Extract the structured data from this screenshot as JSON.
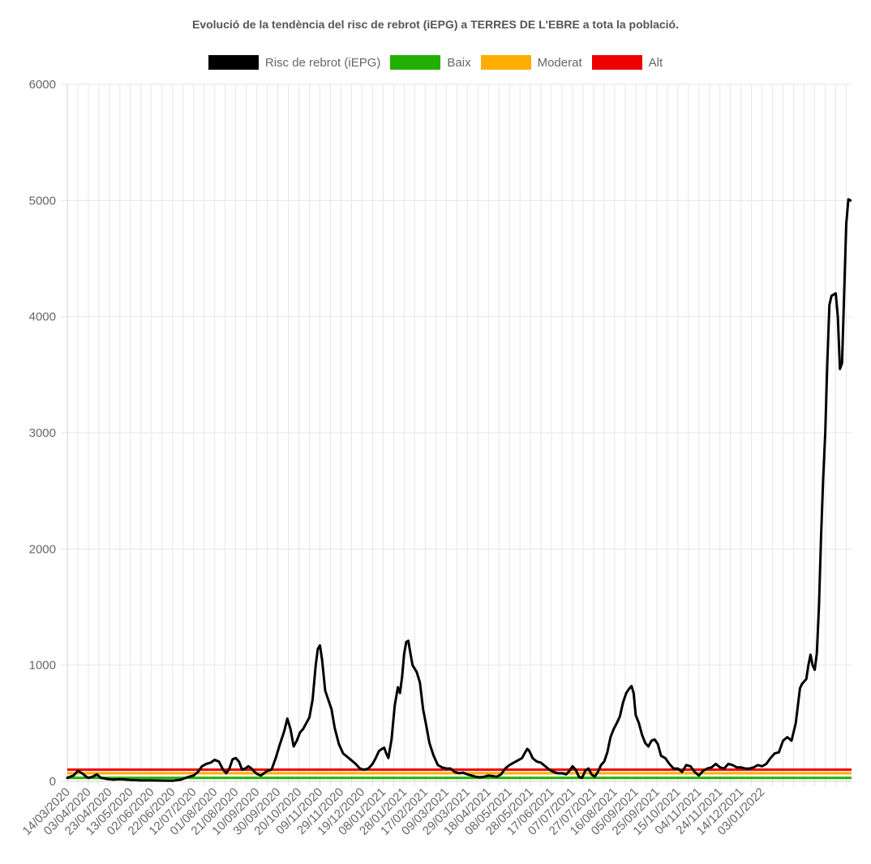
{
  "chart_data": {
    "type": "line",
    "title": "Evolució de la tendència del risc de rebrot (iEPG) a TERRES DE L'EBRE a tota la població.",
    "ylim": [
      0,
      6000
    ],
    "y_ticks": [
      "0",
      "1000",
      "2000",
      "3000",
      "4000",
      "5000",
      "6000"
    ],
    "x_ticks": [
      "14/03/2020",
      "03/04/2020",
      "23/04/2020",
      "13/05/2020",
      "02/06/2020",
      "22/06/2020",
      "12/07/2020",
      "01/08/2020",
      "21/08/2020",
      "10/09/2020",
      "30/09/2020",
      "20/10/2020",
      "09/11/2020",
      "29/11/2020",
      "19/12/2020",
      "08/01/2021",
      "28/01/2021",
      "17/02/2021",
      "09/03/2021",
      "29/03/2021",
      "18/04/2021",
      "08/05/2021",
      "28/05/2021",
      "17/06/2021",
      "07/07/2021",
      "27/07/2021",
      "16/08/2021",
      "05/09/2021",
      "25/09/2021",
      "15/10/2021",
      "04/11/2021",
      "24/11/2021",
      "14/12/2021",
      "03/01/2022"
    ],
    "x_day_start": "14/03/2020",
    "grid": true,
    "legend_position": "top",
    "series": [
      {
        "name": "Risc de rebrot (iEPG)",
        "color": "#000000",
        "points": [
          [
            0,
            30
          ],
          [
            6,
            50
          ],
          [
            10,
            90
          ],
          [
            14,
            70
          ],
          [
            18,
            40
          ],
          [
            20,
            30
          ],
          [
            24,
            40
          ],
          [
            28,
            60
          ],
          [
            32,
            30
          ],
          [
            38,
            20
          ],
          [
            44,
            15
          ],
          [
            50,
            18
          ],
          [
            60,
            12
          ],
          [
            70,
            8
          ],
          [
            80,
            8
          ],
          [
            90,
            6
          ],
          [
            100,
            5
          ],
          [
            108,
            15
          ],
          [
            114,
            35
          ],
          [
            120,
            50
          ],
          [
            124,
            80
          ],
          [
            128,
            130
          ],
          [
            132,
            150
          ],
          [
            136,
            160
          ],
          [
            140,
            185
          ],
          [
            144,
            170
          ],
          [
            148,
            100
          ],
          [
            151,
            70
          ],
          [
            154,
            110
          ],
          [
            157,
            190
          ],
          [
            160,
            200
          ],
          [
            163,
            170
          ],
          [
            166,
            100
          ],
          [
            169,
            110
          ],
          [
            172,
            130
          ],
          [
            175,
            110
          ],
          [
            178,
            80
          ],
          [
            181,
            60
          ],
          [
            184,
            50
          ],
          [
            187,
            70
          ],
          [
            190,
            90
          ],
          [
            194,
            100
          ],
          [
            198,
            200
          ],
          [
            202,
            320
          ],
          [
            206,
            430
          ],
          [
            209,
            540
          ],
          [
            212,
            450
          ],
          [
            215,
            300
          ],
          [
            218,
            350
          ],
          [
            221,
            420
          ],
          [
            224,
            450
          ],
          [
            227,
            500
          ],
          [
            230,
            550
          ],
          [
            233,
            700
          ],
          [
            236,
            1000
          ],
          [
            238,
            1140
          ],
          [
            240,
            1170
          ],
          [
            242,
            1050
          ],
          [
            245,
            780
          ],
          [
            248,
            700
          ],
          [
            251,
            620
          ],
          [
            254,
            460
          ],
          [
            258,
            320
          ],
          [
            262,
            240
          ],
          [
            266,
            210
          ],
          [
            270,
            180
          ],
          [
            274,
            150
          ],
          [
            278,
            110
          ],
          [
            282,
            100
          ],
          [
            286,
            110
          ],
          [
            290,
            150
          ],
          [
            293,
            200
          ],
          [
            296,
            260
          ],
          [
            299,
            280
          ],
          [
            301,
            290
          ],
          [
            303,
            240
          ],
          [
            305,
            200
          ],
          [
            308,
            360
          ],
          [
            311,
            650
          ],
          [
            314,
            810
          ],
          [
            316,
            760
          ],
          [
            318,
            900
          ],
          [
            320,
            1100
          ],
          [
            322,
            1200
          ],
          [
            324,
            1210
          ],
          [
            326,
            1100
          ],
          [
            328,
            1000
          ],
          [
            332,
            940
          ],
          [
            335,
            850
          ],
          [
            338,
            620
          ],
          [
            341,
            480
          ],
          [
            344,
            330
          ],
          [
            348,
            220
          ],
          [
            352,
            140
          ],
          [
            356,
            120
          ],
          [
            360,
            110
          ],
          [
            364,
            110
          ],
          [
            368,
            80
          ],
          [
            372,
            70
          ],
          [
            376,
            75
          ],
          [
            380,
            60
          ],
          [
            384,
            50
          ],
          [
            388,
            40
          ],
          [
            392,
            35
          ],
          [
            396,
            40
          ],
          [
            400,
            50
          ],
          [
            404,
            45
          ],
          [
            408,
            40
          ],
          [
            412,
            60
          ],
          [
            416,
            110
          ],
          [
            420,
            140
          ],
          [
            424,
            160
          ],
          [
            428,
            180
          ],
          [
            432,
            200
          ],
          [
            435,
            250
          ],
          [
            437,
            280
          ],
          [
            439,
            260
          ],
          [
            442,
            200
          ],
          [
            446,
            170
          ],
          [
            450,
            160
          ],
          [
            454,
            130
          ],
          [
            458,
            100
          ],
          [
            462,
            80
          ],
          [
            466,
            70
          ],
          [
            470,
            70
          ],
          [
            474,
            60
          ],
          [
            477,
            90
          ],
          [
            480,
            130
          ],
          [
            483,
            100
          ],
          [
            486,
            40
          ],
          [
            489,
            30
          ],
          [
            492,
            90
          ],
          [
            495,
            110
          ],
          [
            498,
            60
          ],
          [
            501,
            40
          ],
          [
            504,
            80
          ],
          [
            507,
            140
          ],
          [
            510,
            170
          ],
          [
            513,
            250
          ],
          [
            516,
            380
          ],
          [
            519,
            450
          ],
          [
            522,
            500
          ],
          [
            525,
            560
          ],
          [
            528,
            680
          ],
          [
            531,
            760
          ],
          [
            534,
            800
          ],
          [
            536,
            820
          ],
          [
            538,
            760
          ],
          [
            540,
            570
          ],
          [
            543,
            500
          ],
          [
            546,
            400
          ],
          [
            549,
            330
          ],
          [
            552,
            300
          ],
          [
            555,
            350
          ],
          [
            558,
            360
          ],
          [
            561,
            320
          ],
          [
            564,
            220
          ],
          [
            568,
            200
          ],
          [
            572,
            150
          ],
          [
            576,
            110
          ],
          [
            580,
            110
          ],
          [
            584,
            80
          ],
          [
            588,
            140
          ],
          [
            592,
            130
          ],
          [
            596,
            80
          ],
          [
            600,
            50
          ],
          [
            604,
            90
          ],
          [
            608,
            110
          ],
          [
            612,
            120
          ],
          [
            616,
            150
          ],
          [
            620,
            120
          ],
          [
            624,
            110
          ],
          [
            628,
            150
          ],
          [
            632,
            140
          ],
          [
            636,
            120
          ],
          [
            640,
            120
          ],
          [
            644,
            110
          ],
          [
            648,
            110
          ],
          [
            652,
            120
          ],
          [
            656,
            140
          ],
          [
            660,
            130
          ],
          [
            664,
            150
          ],
          [
            668,
            200
          ],
          [
            672,
            240
          ],
          [
            676,
            250
          ],
          [
            680,
            350
          ],
          [
            684,
            380
          ],
          [
            688,
            350
          ],
          [
            692,
            500
          ],
          [
            694,
            650
          ],
          [
            696,
            800
          ],
          [
            698,
            840
          ],
          [
            700,
            860
          ],
          [
            702,
            880
          ],
          [
            704,
            1000
          ],
          [
            706,
            1090
          ],
          [
            708,
            1000
          ],
          [
            710,
            960
          ],
          [
            712,
            1100
          ],
          [
            714,
            1500
          ],
          [
            716,
            2100
          ],
          [
            718,
            2600
          ],
          [
            720,
            3000
          ],
          [
            722,
            3600
          ],
          [
            724,
            4100
          ],
          [
            726,
            4180
          ],
          [
            728,
            4190
          ],
          [
            730,
            4200
          ],
          [
            732,
            4000
          ],
          [
            734,
            3550
          ],
          [
            736,
            3600
          ],
          [
            738,
            4200
          ],
          [
            740,
            4800
          ],
          [
            742,
            5010
          ],
          [
            744,
            5000
          ]
        ]
      },
      {
        "name": "Baix",
        "color": "#22b000",
        "value": 30
      },
      {
        "name": "Moderat",
        "color": "#ffad00",
        "value": 70
      },
      {
        "name": "Alt",
        "color": "#ee0000",
        "value": 100
      }
    ]
  }
}
